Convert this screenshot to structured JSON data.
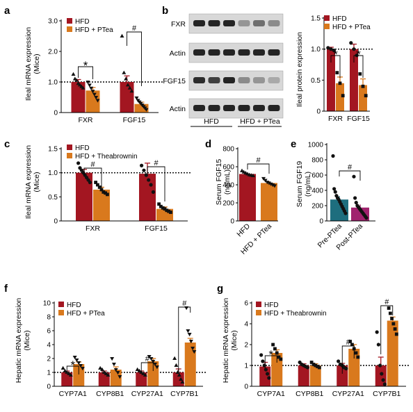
{
  "colors": {
    "hfd": "#a31621",
    "ptea": "#d9791d",
    "pre": "#1e6e7e",
    "post": "#a0226e",
    "blot_bg": "#d8d8d8",
    "band": "#1a1a1a"
  },
  "chart_data": [
    {
      "id": "a",
      "panel_label": "a",
      "type": "bar",
      "ylabel": "Ileal mRNA expression (Mice)",
      "categories": [
        "FXR",
        "FGF15"
      ],
      "ylim": [
        0,
        3
      ],
      "yticks": [
        "0",
        "1.0",
        "2.0",
        "3.0"
      ],
      "yticks_v": [
        0,
        1,
        2,
        3
      ],
      "legend": [
        "HFD",
        "HFD + PTea"
      ],
      "legend_position": "top-left",
      "series": [
        {
          "name": "HFD",
          "values": [
            1.0,
            1.0
          ],
          "err": [
            0.08,
            0.2
          ],
          "points": [
            [
              1.25,
              1.1,
              1.05,
              0.95,
              0.9,
              0.85,
              0.8
            ],
            [
              2.5,
              1.3,
              1.1,
              0.9,
              0.8,
              0.7
            ]
          ]
        },
        {
          "name": "HFD + PTea",
          "values": [
            0.72,
            0.28
          ],
          "err": [
            0.1,
            0.06
          ],
          "points": [
            [
              1.0,
              0.9,
              0.8,
              0.7,
              0.6,
              0.5,
              0.4
            ],
            [
              0.48,
              0.4,
              0.35,
              0.3,
              0.25,
              0.2,
              0.15,
              0.1
            ]
          ]
        }
      ],
      "reference_line": 1.0,
      "significance": [
        "*",
        "#"
      ]
    },
    {
      "id": "b",
      "panel_label": "b",
      "type": "bar",
      "ylabel": "Ileal protein expression",
      "categories": [
        "FXR",
        "FGF15"
      ],
      "ylim": [
        0,
        1.5
      ],
      "yticks": [
        "0",
        "0.5",
        "1.0",
        "1.5"
      ],
      "yticks_v": [
        0,
        0.5,
        1,
        1.5
      ],
      "legend": [
        "HFD",
        "HFD + PTea"
      ],
      "legend_position": "top-left",
      "series": [
        {
          "name": "HFD",
          "values": [
            1.0,
            1.0
          ],
          "err": [
            0.03,
            0.08
          ],
          "points": [
            [
              1.02,
              1.0,
              0.98
            ],
            [
              1.1,
              1.0,
              0.9
            ]
          ]
        },
        {
          "name": "HFD + PTea",
          "values": [
            0.45,
            0.42
          ],
          "err": [
            0.1,
            0.1
          ],
          "points": [
            [
              0.62,
              0.45,
              0.25
            ],
            [
              0.6,
              0.4,
              0.25
            ]
          ]
        }
      ],
      "reference_line": 1.0,
      "significance": [
        "*",
        "*"
      ]
    },
    {
      "id": "c",
      "panel_label": "c",
      "type": "bar",
      "ylabel": "Ileal mRNA expression (Mice)",
      "categories": [
        "FXR",
        "FGF15"
      ],
      "ylim": [
        0,
        1.5
      ],
      "yticks": [
        "0",
        "0.5",
        "1.0",
        "1.5"
      ],
      "yticks_v": [
        0,
        0.5,
        1,
        1.5
      ],
      "legend": [
        "HFD",
        "HFD + Theabrownin"
      ],
      "legend_position": "top-left",
      "series": [
        {
          "name": "HFD",
          "values": [
            1.0,
            0.98
          ],
          "err": [
            0.07,
            0.22
          ],
          "points": [
            [
              1.2,
              1.1,
              1.05,
              1.0,
              0.95,
              0.9,
              0.85,
              0.8
            ],
            [
              1.15,
              1.05,
              0.95,
              0.85,
              0.75,
              0.6
            ]
          ]
        },
        {
          "name": "HFD + Theabrownin",
          "values": [
            0.65,
            0.25
          ],
          "err": [
            0.05,
            0.04
          ],
          "points": [
            [
              0.8,
              0.75,
              0.7,
              0.65,
              0.6,
              0.58,
              0.55
            ],
            [
              0.35,
              0.3,
              0.27,
              0.25,
              0.22,
              0.2,
              0.18
            ]
          ]
        }
      ],
      "reference_line": 1.0,
      "significance": [
        "#",
        "#"
      ]
    },
    {
      "id": "d",
      "panel_label": "d",
      "type": "bar",
      "ylabel": "Serum FGF15 (ng/mL) (Mice)",
      "categories": [
        "HFD",
        "HFD + PTea"
      ],
      "ylim": [
        0,
        800
      ],
      "yticks": [
        "0",
        "200",
        "400",
        "600",
        "800"
      ],
      "yticks_v": [
        0,
        200,
        400,
        600,
        800
      ],
      "values": [
        520,
        420
      ],
      "err": [
        15,
        20
      ],
      "points": [
        [
          555,
          540,
          530,
          520,
          510,
          505,
          500
        ],
        [
          470,
          450,
          430,
          420,
          410,
          400,
          390
        ]
      ],
      "significance": [
        "#"
      ]
    },
    {
      "id": "e",
      "panel_label": "e",
      "type": "bar",
      "ylabel": "Serum FGF19 (ng/mL) (Humans)",
      "categories": [
        "Pre-PTea",
        "Post-PTea"
      ],
      "ylim": [
        0,
        1000
      ],
      "yticks": [
        "0",
        "200",
        "400",
        "600",
        "800",
        "1000"
      ],
      "yticks_v": [
        0,
        200,
        400,
        600,
        800,
        1000
      ],
      "values": [
        280,
        175
      ],
      "err": [
        45,
        40
      ],
      "points": [
        [
          850,
          420,
          380,
          330,
          300,
          280,
          250,
          220,
          190,
          160,
          130,
          100
        ],
        [
          580,
          300,
          240,
          200,
          180,
          160,
          140,
          120,
          100,
          80,
          60,
          40
        ]
      ],
      "significance": [
        "#"
      ]
    },
    {
      "id": "f",
      "panel_label": "f",
      "type": "bar",
      "ylabel": "Hepatic mRNA expression (Mice)",
      "categories": [
        "CYP7A1",
        "CYP8B1",
        "CYP27A1",
        "CYP7B1"
      ],
      "ylim": [
        0,
        10
      ],
      "yticks": [
        "0",
        "1",
        "2",
        "4",
        "6",
        "8",
        "10"
      ],
      "yticks_v": [
        0,
        1,
        2,
        4,
        6,
        8,
        10
      ],
      "legend": [
        "HFD",
        "HFD + PTea"
      ],
      "legend_position": "top-left",
      "series": [
        {
          "name": "HFD",
          "values": [
            1.0,
            1.0,
            1.0,
            1.0
          ],
          "err": [
            0.1,
            0.1,
            0.1,
            0.25
          ],
          "points": [
            [
              1.3,
              1.1,
              1.0,
              0.9,
              0.8
            ],
            [
              1.3,
              1.2,
              1.0,
              0.9,
              0.8
            ],
            [
              1.2,
              1.1,
              1.0,
              0.9,
              0.8
            ],
            [
              2.0,
              1.5,
              1.0,
              0.8,
              0.5,
              0.3
            ]
          ]
        },
        {
          "name": "HFD + PTea",
          "values": [
            1.6,
            1.2,
            1.8,
            4.3
          ],
          "err": [
            0.15,
            0.2,
            0.2,
            0.6
          ],
          "points": [
            [
              2.2,
              1.9,
              1.7,
              1.5,
              1.3
            ],
            [
              2.0,
              1.6,
              1.2,
              1.0,
              0.7
            ],
            [
              2.3,
              2.0,
              1.8,
              1.6,
              1.4
            ],
            [
              9.3,
              6.0,
              5.5,
              4.5,
              3.5,
              3.0
            ]
          ]
        }
      ],
      "reference_line": 1.0,
      "significance": [
        "*",
        "#",
        "#"
      ]
    },
    {
      "id": "g",
      "panel_label": "g",
      "type": "bar",
      "ylabel": "Hepatic mRNA expression (Mice)",
      "categories": [
        "CYP7A1",
        "CYP8B1",
        "CYP27A1",
        "CYP7B1"
      ],
      "ylim": [
        0,
        6
      ],
      "yticks": [
        "0",
        "1",
        "2",
        "4",
        "6"
      ],
      "yticks_v": [
        0,
        1,
        2,
        4,
        6
      ],
      "legend": [
        "HFD",
        "HFD + Theabrownin"
      ],
      "legend_position": "top-left",
      "series": [
        {
          "name": "HFD",
          "values": [
            0.95,
            1.0,
            1.0,
            1.0
          ],
          "err": [
            0.2,
            0.08,
            0.1,
            0.4
          ],
          "points": [
            [
              1.5,
              1.2,
              1.0,
              0.8,
              0.6,
              0.4
            ],
            [
              1.15,
              1.05,
              1.0,
              0.95,
              0.9
            ],
            [
              1.2,
              1.05,
              1.0,
              0.9,
              0.85
            ],
            [
              3.2,
              2.0,
              1.0,
              0.6,
              0.3,
              0.1
            ]
          ]
        },
        {
          "name": "HFD + Theabrownin",
          "values": [
            1.6,
            1.0,
            1.8,
            4.3
          ],
          "err": [
            0.15,
            0.08,
            0.2,
            0.35
          ],
          "points": [
            [
              2.0,
              1.8,
              1.6,
              1.4,
              1.3
            ],
            [
              1.15,
              1.05,
              1.0,
              0.95,
              0.9
            ],
            [
              2.3,
              2.0,
              1.8,
              1.6,
              1.4
            ],
            [
              5.5,
              5.0,
              4.5,
              4.0,
              3.5,
              3.0
            ]
          ]
        }
      ],
      "reference_line": 1.0,
      "significance": [
        "*",
        "#",
        "#"
      ]
    }
  ],
  "blot": {
    "panel_label": "b",
    "rows": [
      "FXR",
      "Actin",
      "FGF15",
      "Actin"
    ],
    "group_labels": [
      "HFD",
      "HFD + PTea"
    ],
    "intensity": [
      [
        0.95,
        0.95,
        0.95,
        0.35,
        0.55,
        0.4
      ],
      [
        0.95,
        0.95,
        0.95,
        0.95,
        0.95,
        0.95
      ],
      [
        0.9,
        0.8,
        0.95,
        0.4,
        0.35,
        0.25
      ],
      [
        0.95,
        0.95,
        0.95,
        0.95,
        0.95,
        0.95
      ]
    ]
  }
}
